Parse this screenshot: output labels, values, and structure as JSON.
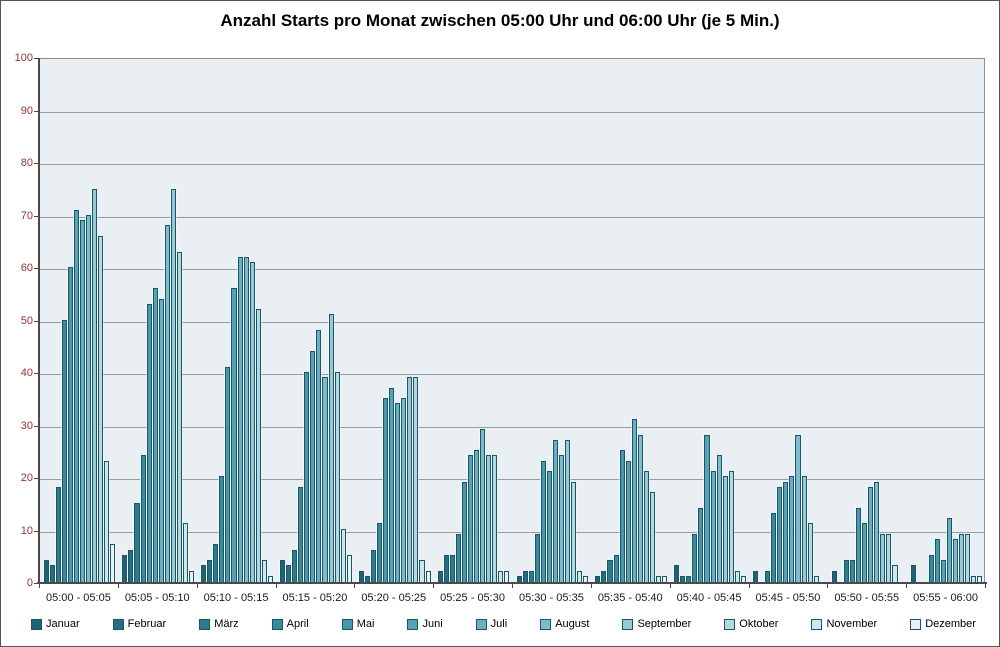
{
  "title": "Anzahl Starts pro Monat zwischen 05:00 Uhr und 06:00 Uhr (je 5 Min.)",
  "colors": {
    "plot_background": "#e9eff2",
    "gridline": "#9b9b9b",
    "axis": "#4a4a4a",
    "bar_border": "#18566a",
    "y_label_color": "#993333",
    "x_label_color": "#1a1a1a",
    "frame_border": "#555555"
  },
  "chart_data": {
    "type": "bar",
    "title": "Anzahl Starts pro Monat zwischen 05:00 Uhr und 06:00 Uhr (je 5 Min.)",
    "xlabel": "",
    "ylabel": "",
    "ylim": [
      0,
      100
    ],
    "yticks": [
      0,
      10,
      20,
      30,
      40,
      50,
      60,
      70,
      80,
      90,
      100
    ],
    "grid": true,
    "legend_position": "bottom",
    "categories": [
      "05:00 - 05:05",
      "05:05 - 05:10",
      "05:10 - 05:15",
      "05:15 - 05:20",
      "05:20 - 05:25",
      "05:25 - 05:30",
      "05:30 - 05:35",
      "05:35 - 05:40",
      "05:40 - 05:45",
      "05:45 - 05:50",
      "05:50 - 05:55",
      "05:55 - 06:00"
    ],
    "series": [
      {
        "name": "Januar",
        "color": "#1f6272",
        "values": [
          4,
          5,
          3,
          4,
          2,
          2,
          1,
          1,
          3,
          2,
          2,
          3
        ]
      },
      {
        "name": "Februar",
        "color": "#256e7e",
        "values": [
          3,
          6,
          4,
          3,
          1,
          5,
          2,
          2,
          1,
          0,
          0,
          0
        ]
      },
      {
        "name": "März",
        "color": "#2e7b8c",
        "values": [
          18,
          15,
          7,
          6,
          6,
          5,
          2,
          4,
          1,
          2,
          4,
          0
        ]
      },
      {
        "name": "April",
        "color": "#3a8a9c",
        "values": [
          50,
          24,
          20,
          18,
          11,
          9,
          9,
          5,
          9,
          13,
          4,
          5
        ]
      },
      {
        "name": "Mai",
        "color": "#4897aa",
        "values": [
          60,
          53,
          41,
          40,
          35,
          19,
          23,
          25,
          14,
          18,
          14,
          8
        ]
      },
      {
        "name": "Juni",
        "color": "#57a3b6",
        "values": [
          71,
          56,
          56,
          44,
          37,
          24,
          21,
          23,
          28,
          19,
          11,
          4
        ]
      },
      {
        "name": "Juli",
        "color": "#69afc1",
        "values": [
          69,
          54,
          62,
          48,
          34,
          25,
          27,
          31,
          21,
          20,
          18,
          12
        ]
      },
      {
        "name": "August",
        "color": "#7fbccb",
        "values": [
          70,
          68,
          62,
          39,
          35,
          29,
          24,
          28,
          24,
          28,
          19,
          8
        ]
      },
      {
        "name": "September",
        "color": "#97c9d6",
        "values": [
          75,
          75,
          61,
          51,
          39,
          24,
          27,
          21,
          20,
          20,
          9,
          9
        ]
      },
      {
        "name": "Oktober",
        "color": "#b3d8e1",
        "values": [
          66,
          63,
          52,
          40,
          39,
          24,
          19,
          17,
          21,
          11,
          9,
          9
        ]
      },
      {
        "name": "November",
        "color": "#cfe6ec",
        "values": [
          23,
          11,
          4,
          10,
          4,
          2,
          2,
          1,
          2,
          1,
          3,
          1
        ]
      },
      {
        "name": "Dezember",
        "color": "#e7f2f5",
        "values": [
          7,
          2,
          1,
          5,
          2,
          2,
          1,
          1,
          1,
          0,
          0,
          1
        ]
      }
    ]
  }
}
